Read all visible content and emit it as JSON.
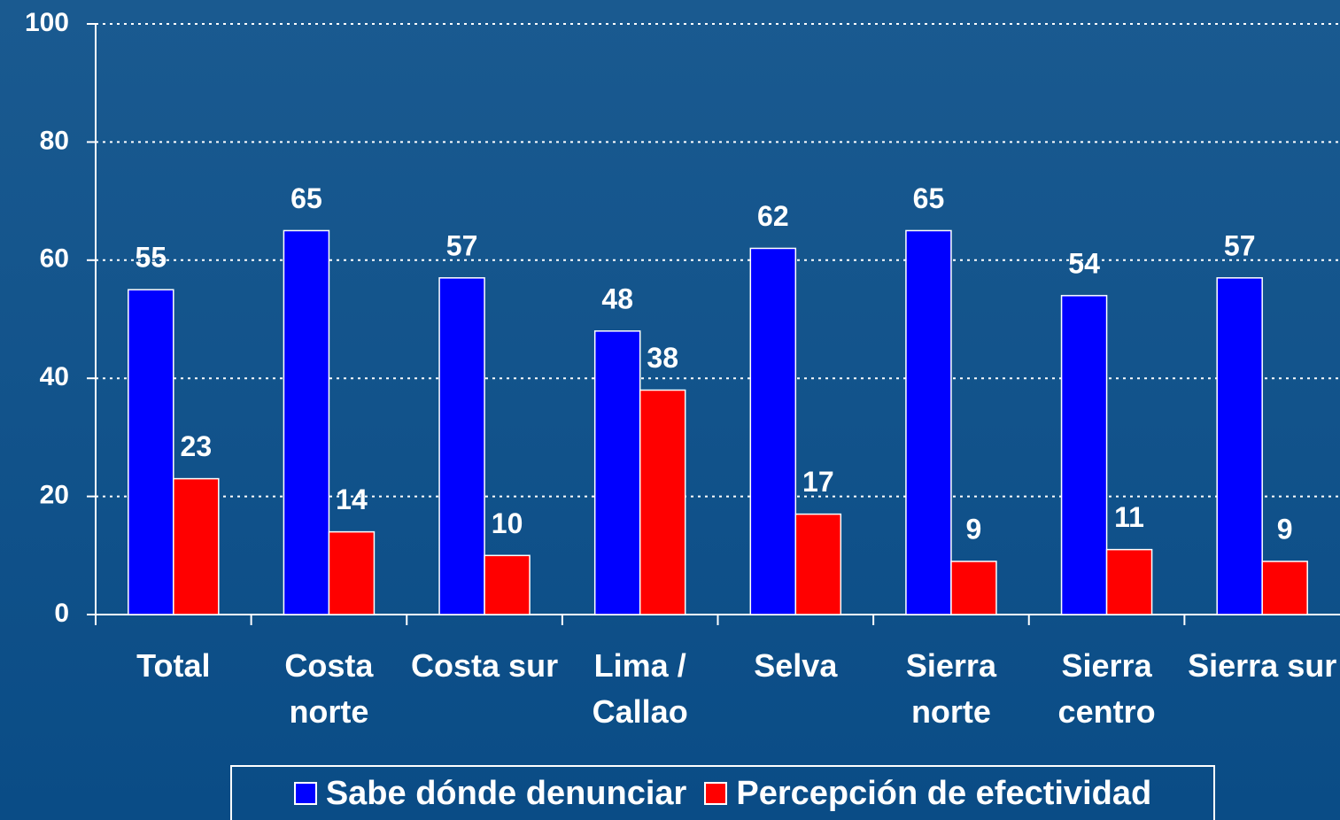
{
  "chart_data": {
    "type": "bar",
    "categories": [
      "Total",
      "Costa norte",
      "Costa sur",
      "Lima / Callao",
      "Selva",
      "Sierra norte",
      "Sierra centro",
      "Sierra sur"
    ],
    "series": [
      {
        "name": "Sabe dónde denunciar",
        "color": "#0000ff",
        "values": [
          55,
          65,
          57,
          48,
          62,
          65,
          54,
          57
        ]
      },
      {
        "name": "Percepción de efectividad",
        "color": "#ff0000",
        "values": [
          23,
          14,
          10,
          38,
          17,
          9,
          11,
          9
        ]
      }
    ],
    "ylim": [
      0,
      100
    ],
    "yticks": [
      0,
      20,
      40,
      60,
      80,
      100
    ],
    "grid": true,
    "legend": "bottom"
  }
}
